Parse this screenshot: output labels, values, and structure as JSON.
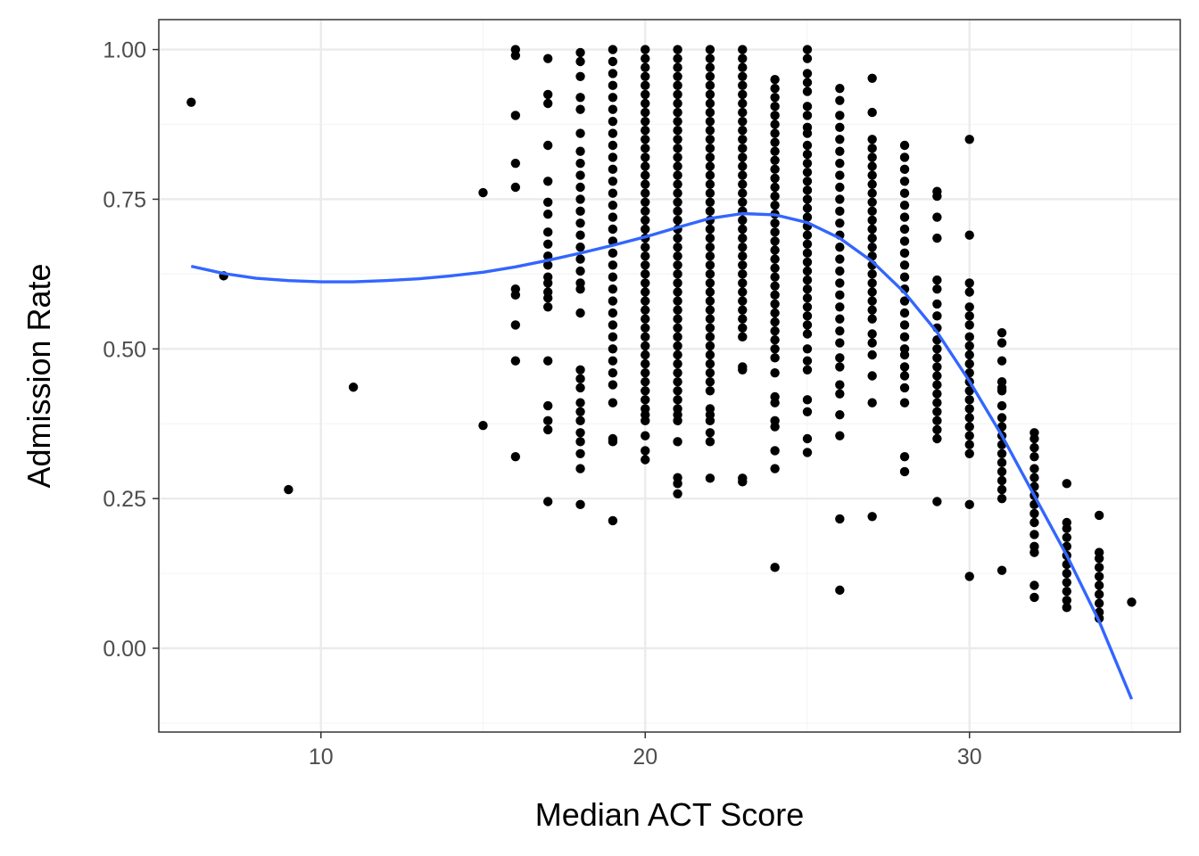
{
  "chart_data": {
    "type": "scatter",
    "title": "",
    "xlabel": "Median ACT Score",
    "ylabel": "Admission Rate",
    "xlim": [
      5,
      36.5
    ],
    "ylim": [
      -0.14,
      1.05
    ],
    "x_ticks": [
      10,
      20,
      30
    ],
    "x_tick_labels": [
      "10",
      "20",
      "30"
    ],
    "y_ticks": [
      0,
      0.25,
      0.5,
      0.75,
      1.0
    ],
    "y_tick_labels": [
      "0.00",
      "0.25",
      "0.50",
      "0.75",
      "1.00"
    ],
    "grid": true,
    "legend": "none",
    "colors": {
      "points": "#000000",
      "smooth": "#3366FF",
      "grid_major": "#EBEBEB",
      "grid_minor": "#F5F5F5",
      "panel_border": "#333333"
    },
    "columns": [
      {
        "x": 6,
        "y": [
          0.912
        ]
      },
      {
        "x": 7,
        "y": [
          0.622
        ]
      },
      {
        "x": 9,
        "y": [
          0.265
        ]
      },
      {
        "x": 11,
        "y": [
          0.436
        ]
      },
      {
        "x": 15,
        "y": [
          0.761,
          0.372
        ]
      },
      {
        "x": 16,
        "y": [
          1.0,
          0.99,
          0.89,
          0.81,
          0.77,
          0.6,
          0.59,
          0.54,
          0.48,
          0.32
        ]
      },
      {
        "x": 17,
        "y": [
          0.985,
          0.925,
          0.91,
          0.84,
          0.78,
          0.745,
          0.725,
          0.695,
          0.675,
          0.655,
          0.64,
          0.62,
          0.61,
          0.595,
          0.585,
          0.57,
          0.48,
          0.405,
          0.38,
          0.365,
          0.245
        ]
      },
      {
        "x": 18,
        "y": [
          0.995,
          0.98,
          0.955,
          0.92,
          0.9,
          0.86,
          0.83,
          0.81,
          0.79,
          0.77,
          0.75,
          0.73,
          0.71,
          0.69,
          0.67,
          0.65,
          0.63,
          0.61,
          0.6,
          0.56,
          0.465,
          0.45,
          0.435,
          0.41,
          0.395,
          0.38,
          0.36,
          0.345,
          0.325,
          0.3,
          0.24
        ]
      },
      {
        "x": 19,
        "y": [
          1.0,
          0.98,
          0.96,
          0.94,
          0.92,
          0.9,
          0.88,
          0.86,
          0.84,
          0.82,
          0.8,
          0.78,
          0.76,
          0.74,
          0.72,
          0.7,
          0.68,
          0.66,
          0.64,
          0.62,
          0.6,
          0.58,
          0.56,
          0.54,
          0.52,
          0.5,
          0.48,
          0.46,
          0.44,
          0.41,
          0.35,
          0.345,
          0.213
        ]
      },
      {
        "x": 20,
        "y": [
          1.0,
          0.985,
          0.97,
          0.955,
          0.94,
          0.925,
          0.91,
          0.895,
          0.88,
          0.865,
          0.85,
          0.835,
          0.82,
          0.805,
          0.79,
          0.775,
          0.76,
          0.745,
          0.73,
          0.715,
          0.7,
          0.685,
          0.67,
          0.655,
          0.64,
          0.625,
          0.61,
          0.595,
          0.58,
          0.565,
          0.55,
          0.535,
          0.52,
          0.505,
          0.49,
          0.475,
          0.46,
          0.445,
          0.43,
          0.415,
          0.4,
          0.39,
          0.38,
          0.355,
          0.33,
          0.315
        ]
      },
      {
        "x": 21,
        "y": [
          1.0,
          0.985,
          0.97,
          0.955,
          0.94,
          0.925,
          0.91,
          0.895,
          0.88,
          0.865,
          0.85,
          0.835,
          0.82,
          0.805,
          0.79,
          0.775,
          0.76,
          0.745,
          0.73,
          0.715,
          0.7,
          0.685,
          0.67,
          0.655,
          0.64,
          0.625,
          0.61,
          0.595,
          0.58,
          0.565,
          0.55,
          0.535,
          0.52,
          0.505,
          0.49,
          0.475,
          0.46,
          0.445,
          0.43,
          0.415,
          0.4,
          0.39,
          0.38,
          0.345,
          0.285,
          0.275,
          0.258
        ]
      },
      {
        "x": 22,
        "y": [
          1.0,
          0.985,
          0.97,
          0.955,
          0.94,
          0.925,
          0.91,
          0.895,
          0.88,
          0.865,
          0.85,
          0.835,
          0.82,
          0.805,
          0.79,
          0.775,
          0.76,
          0.745,
          0.73,
          0.715,
          0.7,
          0.685,
          0.67,
          0.655,
          0.64,
          0.625,
          0.61,
          0.595,
          0.58,
          0.565,
          0.55,
          0.535,
          0.52,
          0.505,
          0.49,
          0.475,
          0.46,
          0.445,
          0.43,
          0.4,
          0.39,
          0.38,
          0.36,
          0.345,
          0.284
        ]
      },
      {
        "x": 23,
        "y": [
          1.0,
          0.985,
          0.97,
          0.955,
          0.94,
          0.925,
          0.91,
          0.895,
          0.88,
          0.865,
          0.85,
          0.835,
          0.82,
          0.805,
          0.79,
          0.775,
          0.76,
          0.745,
          0.73,
          0.715,
          0.7,
          0.685,
          0.67,
          0.655,
          0.64,
          0.625,
          0.61,
          0.595,
          0.58,
          0.565,
          0.55,
          0.535,
          0.52,
          0.47,
          0.465,
          0.284,
          0.278
        ]
      },
      {
        "x": 24,
        "y": [
          0.95,
          0.935,
          0.92,
          0.905,
          0.89,
          0.875,
          0.86,
          0.845,
          0.83,
          0.815,
          0.8,
          0.785,
          0.77,
          0.755,
          0.74,
          0.725,
          0.71,
          0.695,
          0.68,
          0.665,
          0.65,
          0.635,
          0.62,
          0.605,
          0.59,
          0.575,
          0.56,
          0.545,
          0.53,
          0.515,
          0.5,
          0.485,
          0.46,
          0.42,
          0.41,
          0.38,
          0.37,
          0.33,
          0.3,
          0.135
        ]
      },
      {
        "x": 25,
        "y": [
          1.0,
          0.985,
          0.96,
          0.945,
          0.93,
          0.905,
          0.89,
          0.87,
          0.86,
          0.84,
          0.825,
          0.81,
          0.795,
          0.78,
          0.765,
          0.75,
          0.735,
          0.72,
          0.705,
          0.69,
          0.675,
          0.66,
          0.645,
          0.63,
          0.615,
          0.6,
          0.585,
          0.57,
          0.555,
          0.54,
          0.525,
          0.5,
          0.48,
          0.465,
          0.415,
          0.395,
          0.35,
          0.327
        ]
      },
      {
        "x": 26,
        "y": [
          0.935,
          0.915,
          0.89,
          0.87,
          0.85,
          0.83,
          0.81,
          0.79,
          0.77,
          0.75,
          0.73,
          0.71,
          0.69,
          0.67,
          0.65,
          0.63,
          0.61,
          0.59,
          0.57,
          0.55,
          0.53,
          0.51,
          0.485,
          0.47,
          0.44,
          0.425,
          0.39,
          0.355,
          0.216,
          0.097
        ]
      },
      {
        "x": 27,
        "y": [
          0.952,
          0.895,
          0.85,
          0.835,
          0.82,
          0.805,
          0.79,
          0.775,
          0.76,
          0.745,
          0.73,
          0.715,
          0.7,
          0.685,
          0.67,
          0.655,
          0.64,
          0.625,
          0.61,
          0.595,
          0.58,
          0.565,
          0.55,
          0.525,
          0.51,
          0.49,
          0.455,
          0.41,
          0.22
        ]
      },
      {
        "x": 28,
        "y": [
          0.84,
          0.82,
          0.8,
          0.78,
          0.76,
          0.74,
          0.72,
          0.7,
          0.68,
          0.66,
          0.64,
          0.62,
          0.6,
          0.58,
          0.56,
          0.54,
          0.52,
          0.5,
          0.49,
          0.47,
          0.455,
          0.435,
          0.41,
          0.32,
          0.295
        ]
      },
      {
        "x": 29,
        "y": [
          0.763,
          0.755,
          0.72,
          0.685,
          0.615,
          0.6,
          0.575,
          0.555,
          0.535,
          0.515,
          0.5,
          0.485,
          0.47,
          0.455,
          0.44,
          0.425,
          0.41,
          0.395,
          0.38,
          0.365,
          0.35,
          0.245
        ]
      },
      {
        "x": 30,
        "y": [
          0.85,
          0.69,
          0.61,
          0.595,
          0.57,
          0.555,
          0.54,
          0.52,
          0.505,
          0.49,
          0.475,
          0.46,
          0.445,
          0.43,
          0.415,
          0.4,
          0.385,
          0.37,
          0.355,
          0.34,
          0.325,
          0.24,
          0.12
        ]
      },
      {
        "x": 31,
        "y": [
          0.527,
          0.51,
          0.48,
          0.445,
          0.435,
          0.43,
          0.405,
          0.385,
          0.37,
          0.355,
          0.34,
          0.325,
          0.31,
          0.295,
          0.28,
          0.265,
          0.25,
          0.13
        ]
      },
      {
        "x": 32,
        "y": [
          0.36,
          0.35,
          0.335,
          0.32,
          0.3,
          0.285,
          0.27,
          0.255,
          0.24,
          0.225,
          0.21,
          0.19,
          0.17,
          0.16,
          0.105,
          0.085
        ]
      },
      {
        "x": 33,
        "y": [
          0.275,
          0.21,
          0.2,
          0.185,
          0.17,
          0.155,
          0.14,
          0.125,
          0.11,
          0.095,
          0.08,
          0.068
        ]
      },
      {
        "x": 34,
        "y": [
          0.222,
          0.16,
          0.15,
          0.135,
          0.12,
          0.105,
          0.09,
          0.075,
          0.06,
          0.05
        ]
      },
      {
        "x": 35,
        "y": [
          0.077
        ]
      }
    ],
    "smooth_line": {
      "x": [
        6,
        7,
        8,
        9,
        10,
        11,
        12,
        13,
        14,
        15,
        16,
        17,
        18,
        19,
        20,
        21,
        22,
        23,
        24,
        25,
        26,
        27,
        28,
        29,
        30,
        31,
        32,
        33,
        34,
        35
      ],
      "y": [
        0.638,
        0.626,
        0.618,
        0.614,
        0.612,
        0.612,
        0.614,
        0.617,
        0.622,
        0.628,
        0.637,
        0.648,
        0.66,
        0.673,
        0.687,
        0.703,
        0.718,
        0.726,
        0.724,
        0.711,
        0.685,
        0.646,
        0.594,
        0.528,
        0.446,
        0.355,
        0.255,
        0.155,
        0.045,
        -0.085
      ]
    }
  }
}
